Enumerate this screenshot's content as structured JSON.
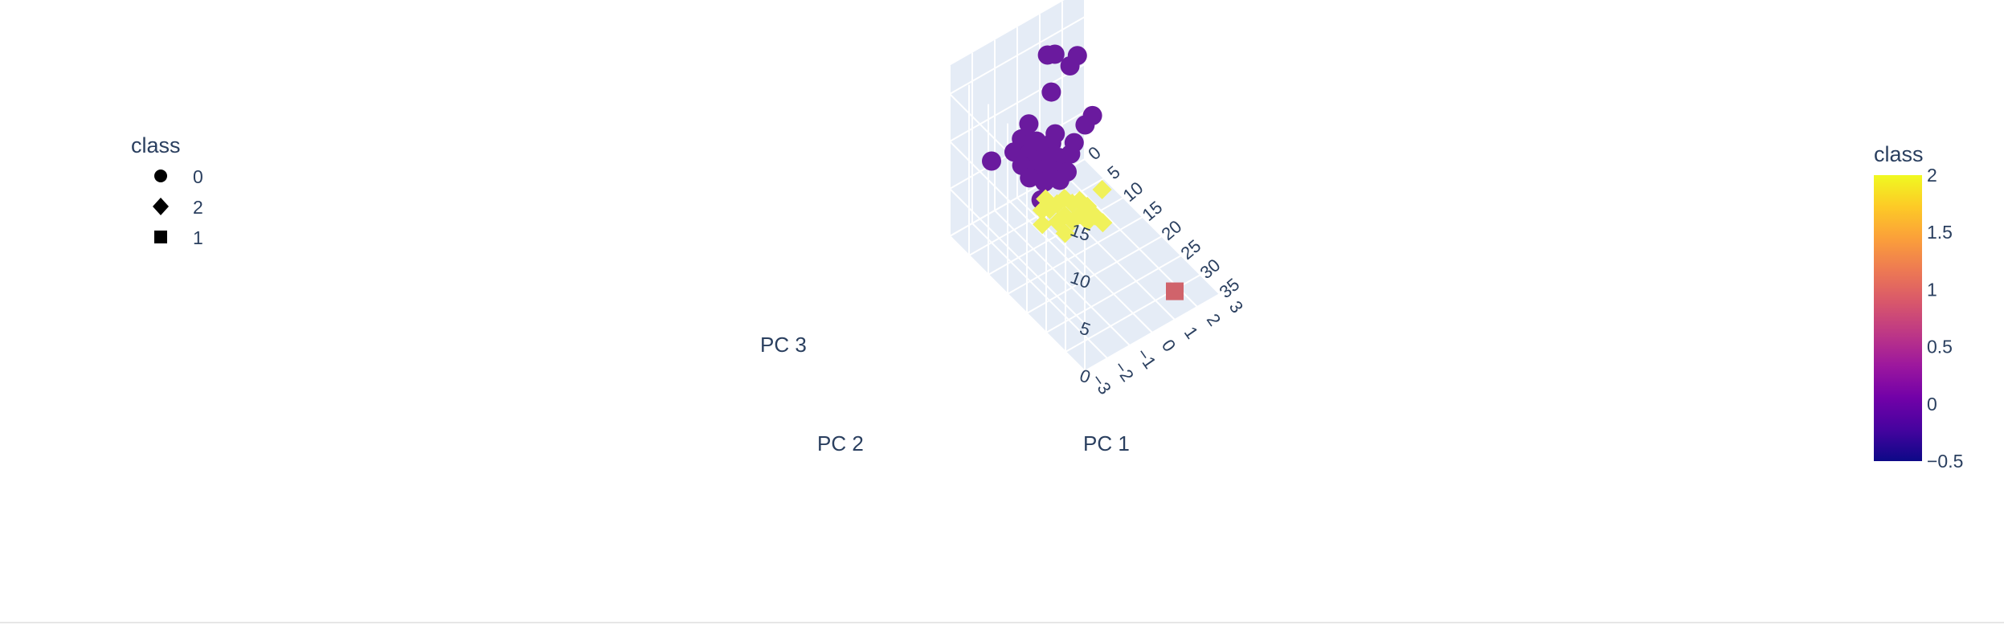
{
  "chart_data": {
    "type": "scatter",
    "axes": {
      "x": {
        "label": "PC 1",
        "ticks": [
          "0",
          "5",
          "10",
          "15",
          "20",
          "25",
          "30",
          "35"
        ]
      },
      "y": {
        "label": "PC 2",
        "ticks": [
          "−3",
          "−2",
          "−1",
          "0",
          "1",
          "2",
          "3"
        ]
      },
      "z": {
        "label": "PC 3",
        "ticks": [
          "0",
          "5",
          "10",
          "15"
        ]
      }
    },
    "legend": {
      "title": "class",
      "placement": "top-left",
      "items": [
        {
          "label": "0",
          "symbol": "circle"
        },
        {
          "label": "2",
          "symbol": "diamond"
        },
        {
          "label": "1",
          "symbol": "square"
        }
      ]
    },
    "colorbar": {
      "title": "class",
      "range": [
        -0.5,
        2
      ],
      "ticks": [
        "2",
        "1.5",
        "1",
        "0.5",
        "0",
        "−0.5"
      ],
      "colors": [
        "#0d0887",
        "#46039f",
        "#7201a8",
        "#9c179e",
        "#bd3786",
        "#d8576b",
        "#ed7953",
        "#fb9f3a",
        "#fdca26",
        "#f0f921"
      ]
    },
    "series": [
      {
        "name": "0",
        "symbol": "circle",
        "class_value": 0,
        "color": "#6a1a9e",
        "points": [
          [
            2,
            1,
            14.5
          ],
          [
            1,
            1.5,
            13.5
          ],
          [
            2,
            2,
            12
          ],
          [
            1,
            2.5,
            12
          ],
          [
            3,
            1,
            11
          ],
          [
            3,
            0,
            9
          ],
          [
            4,
            -0.5,
            8.5
          ],
          [
            5,
            -1,
            8.2
          ],
          [
            5,
            0,
            8
          ],
          [
            6,
            -0.5,
            7.8
          ],
          [
            6,
            0.5,
            7.5
          ],
          [
            7,
            -1,
            7.6
          ],
          [
            7,
            0,
            7.2
          ],
          [
            8,
            -0.5,
            7
          ],
          [
            8,
            0.5,
            6.8
          ],
          [
            9,
            -1,
            7.1
          ],
          [
            9,
            0,
            6.6
          ],
          [
            10,
            -0.5,
            6.4
          ],
          [
            10,
            0.5,
            6.1
          ],
          [
            11,
            0,
            6.3
          ],
          [
            4,
            1,
            7
          ],
          [
            6,
            1.5,
            6.2
          ],
          [
            3,
            2.5,
            5.5
          ],
          [
            2,
            3,
            5.4
          ],
          [
            12,
            -1,
            6.0
          ],
          [
            4,
            0,
            7.5
          ],
          [
            5,
            -2,
            8.6
          ],
          [
            8,
            1,
            6.5
          ]
        ]
      },
      {
        "name": "2",
        "symbol": "diamond",
        "class_value": 2,
        "color": "#f0f15a",
        "points": [
          [
            20,
            -2,
            10
          ],
          [
            21,
            -1.5,
            10.5
          ],
          [
            22,
            -1,
            10
          ],
          [
            22,
            -2,
            11
          ],
          [
            23,
            -1.5,
            10.8
          ],
          [
            24,
            -1,
            10.2
          ],
          [
            24,
            -2,
            10.6
          ],
          [
            25,
            -1.5,
            10.4
          ],
          [
            26,
            -1,
            10
          ],
          [
            26,
            -2,
            10.8
          ],
          [
            27,
            -1.5,
            10.5
          ],
          [
            28,
            -1,
            10.1
          ],
          [
            23,
            -2.5,
            11.5
          ],
          [
            25,
            -2.5,
            11
          ],
          [
            21,
            -2.5,
            10.6
          ],
          [
            19,
            -2,
            10.3
          ],
          [
            22,
            0,
            9.8
          ],
          [
            27,
            -2.5,
            10.6
          ],
          [
            24,
            -3,
            11
          ]
        ]
      },
      {
        "name": "1",
        "symbol": "square",
        "class_value": 1,
        "color": "#d0636b",
        "points": [
          [
            35,
            1,
            3
          ]
        ]
      }
    ]
  }
}
